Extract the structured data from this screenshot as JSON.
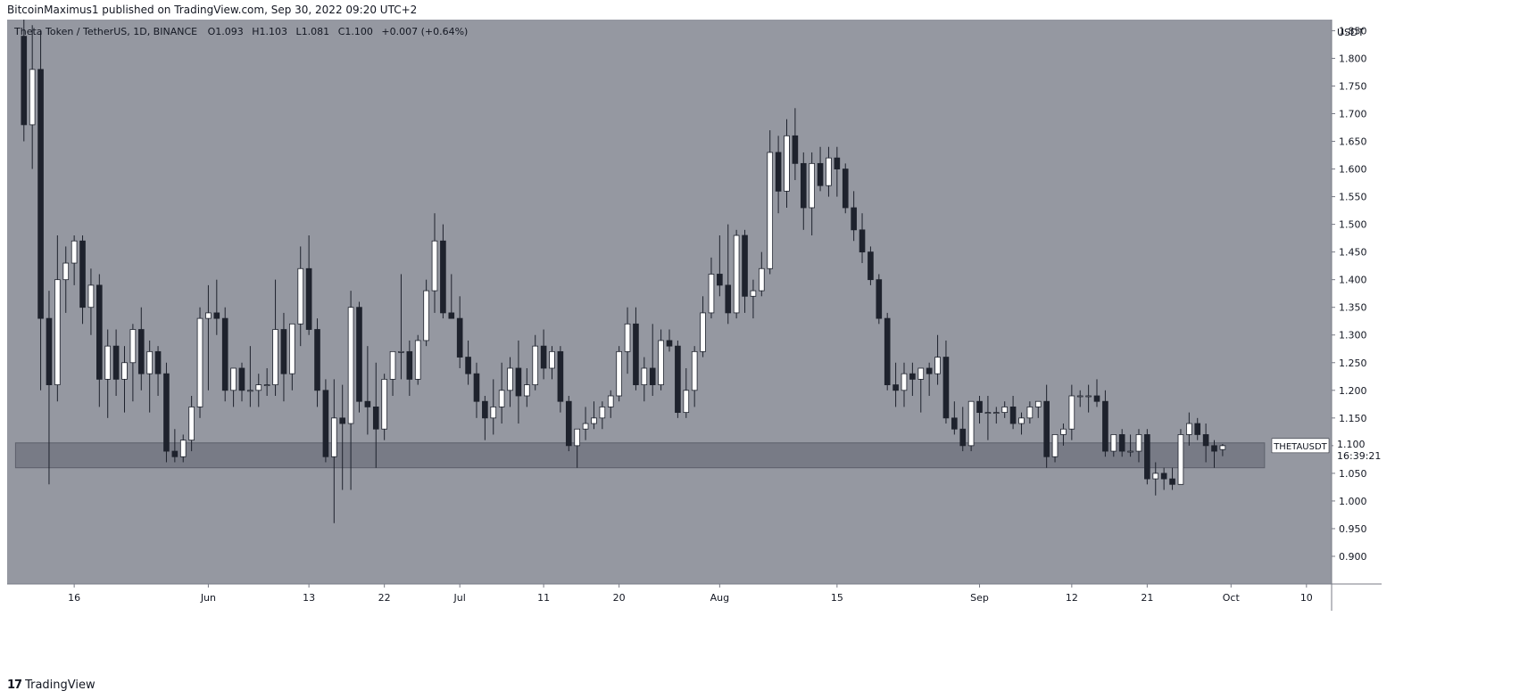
{
  "header": {
    "published_text": "BitcoinMaximus1 published on TradingView.com, Sep 30, 2022 09:20 UTC+2"
  },
  "legend": {
    "symbol": "Theta Token / TetherUS, 1D, BINANCE",
    "open_label": "O",
    "open": "1.093",
    "high_label": "H",
    "high": "1.103",
    "low_label": "L",
    "low": "1.081",
    "close_label": "C",
    "close": "1.100",
    "change": "+0.007 (+0.64%)"
  },
  "price_tag": {
    "ticker": "THETAUSDT",
    "price": "1.100",
    "countdown": "16:39:21"
  },
  "footer": {
    "logo_mark": "17",
    "logo_text": "TradingView"
  },
  "colors": {
    "chart_bg": "#9598a1",
    "up_candle": "#ffffff",
    "down_candle": "#1e222d",
    "wick": "#1e222d",
    "support_zone": "#787b86"
  },
  "chart_data": {
    "type": "candlestick",
    "ylabel": "USDT",
    "y_ticks": [
      "1.850",
      "1.800",
      "1.750",
      "1.700",
      "1.650",
      "1.600",
      "1.550",
      "1.500",
      "1.450",
      "1.400",
      "1.350",
      "1.300",
      "1.250",
      "1.200",
      "1.150",
      "1.100",
      "1.050",
      "1.000",
      "0.950",
      "0.900"
    ],
    "ylim": [
      0.85,
      1.87
    ],
    "x_ticks": [
      {
        "label": "16",
        "date": "2022-05-16"
      },
      {
        "label": "Jun",
        "date": "2022-06-01"
      },
      {
        "label": "13",
        "date": "2022-06-13"
      },
      {
        "label": "22",
        "date": "2022-06-22"
      },
      {
        "label": "Jul",
        "date": "2022-07-01"
      },
      {
        "label": "11",
        "date": "2022-07-11"
      },
      {
        "label": "20",
        "date": "2022-07-20"
      },
      {
        "label": "Aug",
        "date": "2022-08-01"
      },
      {
        "label": "15",
        "date": "2022-08-15"
      },
      {
        "label": "Sep",
        "date": "2022-09-01"
      },
      {
        "label": "12",
        "date": "2022-09-12"
      },
      {
        "label": "21",
        "date": "2022-09-21"
      },
      {
        "label": "Oct",
        "date": "2022-10-01"
      },
      {
        "label": "10",
        "date": "2022-10-10"
      }
    ],
    "xlim": [
      "2022-05-08",
      "2022-10-13"
    ],
    "support_zone": {
      "low": 1.06,
      "high": 1.105,
      "start": "2022-05-09",
      "end": "2022-10-05"
    },
    "grid": false,
    "candles": [
      {
        "date": "2022-05-10",
        "o": 1.84,
        "h": 1.87,
        "l": 1.65,
        "c": 1.68
      },
      {
        "date": "2022-05-11",
        "o": 1.68,
        "h": 1.86,
        "l": 1.6,
        "c": 1.78
      },
      {
        "date": "2022-05-12",
        "o": 1.78,
        "h": 1.85,
        "l": 1.2,
        "c": 1.33
      },
      {
        "date": "2022-05-13",
        "o": 1.33,
        "h": 1.38,
        "l": 1.03,
        "c": 1.21
      },
      {
        "date": "2022-05-14",
        "o": 1.21,
        "h": 1.48,
        "l": 1.18,
        "c": 1.4
      },
      {
        "date": "2022-05-15",
        "o": 1.4,
        "h": 1.46,
        "l": 1.34,
        "c": 1.43
      },
      {
        "date": "2022-05-16",
        "o": 1.43,
        "h": 1.48,
        "l": 1.39,
        "c": 1.47
      },
      {
        "date": "2022-05-17",
        "o": 1.47,
        "h": 1.48,
        "l": 1.32,
        "c": 1.35
      },
      {
        "date": "2022-05-18",
        "o": 1.35,
        "h": 1.42,
        "l": 1.3,
        "c": 1.39
      },
      {
        "date": "2022-05-19",
        "o": 1.39,
        "h": 1.41,
        "l": 1.17,
        "c": 1.22
      },
      {
        "date": "2022-05-20",
        "o": 1.22,
        "h": 1.31,
        "l": 1.15,
        "c": 1.28
      },
      {
        "date": "2022-05-21",
        "o": 1.28,
        "h": 1.31,
        "l": 1.19,
        "c": 1.22
      },
      {
        "date": "2022-05-22",
        "o": 1.22,
        "h": 1.28,
        "l": 1.16,
        "c": 1.25
      },
      {
        "date": "2022-05-23",
        "o": 1.25,
        "h": 1.32,
        "l": 1.18,
        "c": 1.31
      },
      {
        "date": "2022-05-24",
        "o": 1.31,
        "h": 1.35,
        "l": 1.2,
        "c": 1.23
      },
      {
        "date": "2022-05-25",
        "o": 1.23,
        "h": 1.29,
        "l": 1.16,
        "c": 1.27
      },
      {
        "date": "2022-05-26",
        "o": 1.27,
        "h": 1.28,
        "l": 1.19,
        "c": 1.23
      },
      {
        "date": "2022-05-27",
        "o": 1.23,
        "h": 1.25,
        "l": 1.07,
        "c": 1.09
      },
      {
        "date": "2022-05-28",
        "o": 1.09,
        "h": 1.13,
        "l": 1.07,
        "c": 1.08
      },
      {
        "date": "2022-05-29",
        "o": 1.08,
        "h": 1.12,
        "l": 1.07,
        "c": 1.11
      },
      {
        "date": "2022-05-30",
        "o": 1.11,
        "h": 1.19,
        "l": 1.09,
        "c": 1.17
      },
      {
        "date": "2022-05-31",
        "o": 1.17,
        "h": 1.35,
        "l": 1.15,
        "c": 1.33
      },
      {
        "date": "2022-06-01",
        "o": 1.33,
        "h": 1.39,
        "l": 1.2,
        "c": 1.34
      },
      {
        "date": "2022-06-02",
        "o": 1.34,
        "h": 1.4,
        "l": 1.3,
        "c": 1.33
      },
      {
        "date": "2022-06-03",
        "o": 1.33,
        "h": 1.35,
        "l": 1.18,
        "c": 1.2
      },
      {
        "date": "2022-06-04",
        "o": 1.2,
        "h": 1.24,
        "l": 1.17,
        "c": 1.24
      },
      {
        "date": "2022-06-05",
        "o": 1.24,
        "h": 1.25,
        "l": 1.18,
        "c": 1.2
      },
      {
        "date": "2022-06-06",
        "o": 1.2,
        "h": 1.28,
        "l": 1.17,
        "c": 1.2
      },
      {
        "date": "2022-06-07",
        "o": 1.2,
        "h": 1.23,
        "l": 1.17,
        "c": 1.21
      },
      {
        "date": "2022-06-08",
        "o": 1.21,
        "h": 1.24,
        "l": 1.19,
        "c": 1.21
      },
      {
        "date": "2022-06-09",
        "o": 1.21,
        "h": 1.4,
        "l": 1.19,
        "c": 1.31
      },
      {
        "date": "2022-06-10",
        "o": 1.31,
        "h": 1.34,
        "l": 1.18,
        "c": 1.23
      },
      {
        "date": "2022-06-11",
        "o": 1.23,
        "h": 1.32,
        "l": 1.2,
        "c": 1.32
      },
      {
        "date": "2022-06-12",
        "o": 1.32,
        "h": 1.46,
        "l": 1.28,
        "c": 1.42
      },
      {
        "date": "2022-06-13",
        "o": 1.42,
        "h": 1.48,
        "l": 1.3,
        "c": 1.31
      },
      {
        "date": "2022-06-14",
        "o": 1.31,
        "h": 1.33,
        "l": 1.17,
        "c": 1.2
      },
      {
        "date": "2022-06-15",
        "o": 1.2,
        "h": 1.22,
        "l": 1.07,
        "c": 1.08
      },
      {
        "date": "2022-06-16",
        "o": 1.08,
        "h": 1.22,
        "l": 0.96,
        "c": 1.15
      },
      {
        "date": "2022-06-17",
        "o": 1.15,
        "h": 1.21,
        "l": 1.02,
        "c": 1.14
      },
      {
        "date": "2022-06-18",
        "o": 1.14,
        "h": 1.38,
        "l": 1.02,
        "c": 1.35
      },
      {
        "date": "2022-06-19",
        "o": 1.35,
        "h": 1.36,
        "l": 1.16,
        "c": 1.18
      },
      {
        "date": "2022-06-20",
        "o": 1.18,
        "h": 1.28,
        "l": 1.12,
        "c": 1.17
      },
      {
        "date": "2022-06-21",
        "o": 1.17,
        "h": 1.25,
        "l": 1.06,
        "c": 1.13
      },
      {
        "date": "2022-06-22",
        "o": 1.13,
        "h": 1.23,
        "l": 1.11,
        "c": 1.22
      },
      {
        "date": "2022-06-23",
        "o": 1.22,
        "h": 1.27,
        "l": 1.19,
        "c": 1.27
      },
      {
        "date": "2022-06-24",
        "o": 1.27,
        "h": 1.41,
        "l": 1.22,
        "c": 1.27
      },
      {
        "date": "2022-06-25",
        "o": 1.27,
        "h": 1.29,
        "l": 1.19,
        "c": 1.22
      },
      {
        "date": "2022-06-26",
        "o": 1.22,
        "h": 1.3,
        "l": 1.21,
        "c": 1.29
      },
      {
        "date": "2022-06-27",
        "o": 1.29,
        "h": 1.4,
        "l": 1.28,
        "c": 1.38
      },
      {
        "date": "2022-06-28",
        "o": 1.38,
        "h": 1.52,
        "l": 1.34,
        "c": 1.47
      },
      {
        "date": "2022-06-29",
        "o": 1.47,
        "h": 1.5,
        "l": 1.33,
        "c": 1.34
      },
      {
        "date": "2022-06-30",
        "o": 1.34,
        "h": 1.41,
        "l": 1.33,
        "c": 1.33
      },
      {
        "date": "2022-07-01",
        "o": 1.33,
        "h": 1.37,
        "l": 1.24,
        "c": 1.26
      },
      {
        "date": "2022-07-02",
        "o": 1.26,
        "h": 1.29,
        "l": 1.21,
        "c": 1.23
      },
      {
        "date": "2022-07-03",
        "o": 1.23,
        "h": 1.25,
        "l": 1.15,
        "c": 1.18
      },
      {
        "date": "2022-07-04",
        "o": 1.18,
        "h": 1.19,
        "l": 1.11,
        "c": 1.15
      },
      {
        "date": "2022-07-05",
        "o": 1.15,
        "h": 1.22,
        "l": 1.12,
        "c": 1.17
      },
      {
        "date": "2022-07-06",
        "o": 1.17,
        "h": 1.25,
        "l": 1.14,
        "c": 1.2
      },
      {
        "date": "2022-07-07",
        "o": 1.2,
        "h": 1.26,
        "l": 1.17,
        "c": 1.24
      },
      {
        "date": "2022-07-08",
        "o": 1.24,
        "h": 1.29,
        "l": 1.14,
        "c": 1.19
      },
      {
        "date": "2022-07-09",
        "o": 1.19,
        "h": 1.24,
        "l": 1.17,
        "c": 1.21
      },
      {
        "date": "2022-07-10",
        "o": 1.21,
        "h": 1.3,
        "l": 1.2,
        "c": 1.28
      },
      {
        "date": "2022-07-11",
        "o": 1.28,
        "h": 1.31,
        "l": 1.22,
        "c": 1.24
      },
      {
        "date": "2022-07-12",
        "o": 1.24,
        "h": 1.28,
        "l": 1.22,
        "c": 1.27
      },
      {
        "date": "2022-07-13",
        "o": 1.27,
        "h": 1.28,
        "l": 1.16,
        "c": 1.18
      },
      {
        "date": "2022-07-14",
        "o": 1.18,
        "h": 1.19,
        "l": 1.09,
        "c": 1.1
      },
      {
        "date": "2022-07-15",
        "o": 1.1,
        "h": 1.13,
        "l": 1.06,
        "c": 1.13
      },
      {
        "date": "2022-07-16",
        "o": 1.13,
        "h": 1.17,
        "l": 1.11,
        "c": 1.14
      },
      {
        "date": "2022-07-17",
        "o": 1.14,
        "h": 1.18,
        "l": 1.13,
        "c": 1.15
      },
      {
        "date": "2022-07-18",
        "o": 1.15,
        "h": 1.18,
        "l": 1.13,
        "c": 1.17
      },
      {
        "date": "2022-07-19",
        "o": 1.17,
        "h": 1.2,
        "l": 1.15,
        "c": 1.19
      },
      {
        "date": "2022-07-20",
        "o": 1.19,
        "h": 1.28,
        "l": 1.18,
        "c": 1.27
      },
      {
        "date": "2022-07-21",
        "o": 1.27,
        "h": 1.35,
        "l": 1.23,
        "c": 1.32
      },
      {
        "date": "2022-07-22",
        "o": 1.32,
        "h": 1.35,
        "l": 1.2,
        "c": 1.21
      },
      {
        "date": "2022-07-23",
        "o": 1.21,
        "h": 1.26,
        "l": 1.18,
        "c": 1.24
      },
      {
        "date": "2022-07-24",
        "o": 1.24,
        "h": 1.32,
        "l": 1.19,
        "c": 1.21
      },
      {
        "date": "2022-07-25",
        "o": 1.21,
        "h": 1.31,
        "l": 1.2,
        "c": 1.29
      },
      {
        "date": "2022-07-26",
        "o": 1.29,
        "h": 1.31,
        "l": 1.27,
        "c": 1.28
      },
      {
        "date": "2022-07-27",
        "o": 1.28,
        "h": 1.29,
        "l": 1.15,
        "c": 1.16
      },
      {
        "date": "2022-07-28",
        "o": 1.16,
        "h": 1.24,
        "l": 1.15,
        "c": 1.2
      },
      {
        "date": "2022-07-29",
        "o": 1.2,
        "h": 1.28,
        "l": 1.17,
        "c": 1.27
      },
      {
        "date": "2022-07-30",
        "o": 1.27,
        "h": 1.37,
        "l": 1.26,
        "c": 1.34
      },
      {
        "date": "2022-07-31",
        "o": 1.34,
        "h": 1.44,
        "l": 1.33,
        "c": 1.41
      },
      {
        "date": "2022-08-01",
        "o": 1.41,
        "h": 1.48,
        "l": 1.37,
        "c": 1.39
      },
      {
        "date": "2022-08-02",
        "o": 1.39,
        "h": 1.5,
        "l": 1.32,
        "c": 1.34
      },
      {
        "date": "2022-08-03",
        "o": 1.34,
        "h": 1.49,
        "l": 1.33,
        "c": 1.48
      },
      {
        "date": "2022-08-04",
        "o": 1.48,
        "h": 1.49,
        "l": 1.34,
        "c": 1.37
      },
      {
        "date": "2022-08-05",
        "o": 1.37,
        "h": 1.4,
        "l": 1.33,
        "c": 1.38
      },
      {
        "date": "2022-08-06",
        "o": 1.38,
        "h": 1.45,
        "l": 1.37,
        "c": 1.42
      },
      {
        "date": "2022-08-07",
        "o": 1.42,
        "h": 1.67,
        "l": 1.41,
        "c": 1.63
      },
      {
        "date": "2022-08-08",
        "o": 1.63,
        "h": 1.66,
        "l": 1.52,
        "c": 1.56
      },
      {
        "date": "2022-08-09",
        "o": 1.56,
        "h": 1.69,
        "l": 1.53,
        "c": 1.66
      },
      {
        "date": "2022-08-10",
        "o": 1.66,
        "h": 1.71,
        "l": 1.58,
        "c": 1.61
      },
      {
        "date": "2022-08-11",
        "o": 1.61,
        "h": 1.63,
        "l": 1.49,
        "c": 1.53
      },
      {
        "date": "2022-08-12",
        "o": 1.53,
        "h": 1.63,
        "l": 1.48,
        "c": 1.61
      },
      {
        "date": "2022-08-13",
        "o": 1.61,
        "h": 1.64,
        "l": 1.56,
        "c": 1.57
      },
      {
        "date": "2022-08-14",
        "o": 1.57,
        "h": 1.64,
        "l": 1.55,
        "c": 1.62
      },
      {
        "date": "2022-08-15",
        "o": 1.62,
        "h": 1.64,
        "l": 1.55,
        "c": 1.6
      },
      {
        "date": "2022-08-16",
        "o": 1.6,
        "h": 1.61,
        "l": 1.52,
        "c": 1.53
      },
      {
        "date": "2022-08-17",
        "o": 1.53,
        "h": 1.56,
        "l": 1.47,
        "c": 1.49
      },
      {
        "date": "2022-08-18",
        "o": 1.49,
        "h": 1.52,
        "l": 1.43,
        "c": 1.45
      },
      {
        "date": "2022-08-19",
        "o": 1.45,
        "h": 1.46,
        "l": 1.39,
        "c": 1.4
      },
      {
        "date": "2022-08-20",
        "o": 1.4,
        "h": 1.41,
        "l": 1.32,
        "c": 1.33
      },
      {
        "date": "2022-08-21",
        "o": 1.33,
        "h": 1.34,
        "l": 1.2,
        "c": 1.21
      },
      {
        "date": "2022-08-22",
        "o": 1.21,
        "h": 1.25,
        "l": 1.17,
        "c": 1.2
      },
      {
        "date": "2022-08-23",
        "o": 1.2,
        "h": 1.25,
        "l": 1.17,
        "c": 1.23
      },
      {
        "date": "2022-08-24",
        "o": 1.23,
        "h": 1.25,
        "l": 1.19,
        "c": 1.22
      },
      {
        "date": "2022-08-25",
        "o": 1.22,
        "h": 1.24,
        "l": 1.16,
        "c": 1.24
      },
      {
        "date": "2022-08-26",
        "o": 1.24,
        "h": 1.25,
        "l": 1.19,
        "c": 1.23
      },
      {
        "date": "2022-08-27",
        "o": 1.23,
        "h": 1.3,
        "l": 1.21,
        "c": 1.26
      },
      {
        "date": "2022-08-28",
        "o": 1.26,
        "h": 1.29,
        "l": 1.14,
        "c": 1.15
      },
      {
        "date": "2022-08-29",
        "o": 1.15,
        "h": 1.18,
        "l": 1.12,
        "c": 1.13
      },
      {
        "date": "2022-08-30",
        "o": 1.13,
        "h": 1.17,
        "l": 1.09,
        "c": 1.1
      },
      {
        "date": "2022-08-31",
        "o": 1.1,
        "h": 1.18,
        "l": 1.09,
        "c": 1.18
      },
      {
        "date": "2022-09-01",
        "o": 1.18,
        "h": 1.19,
        "l": 1.14,
        "c": 1.16
      },
      {
        "date": "2022-09-02",
        "o": 1.16,
        "h": 1.19,
        "l": 1.11,
        "c": 1.16
      },
      {
        "date": "2022-09-03",
        "o": 1.16,
        "h": 1.17,
        "l": 1.14,
        "c": 1.16
      },
      {
        "date": "2022-09-04",
        "o": 1.16,
        "h": 1.18,
        "l": 1.15,
        "c": 1.17
      },
      {
        "date": "2022-09-05",
        "o": 1.17,
        "h": 1.19,
        "l": 1.13,
        "c": 1.14
      },
      {
        "date": "2022-09-06",
        "o": 1.14,
        "h": 1.16,
        "l": 1.12,
        "c": 1.15
      },
      {
        "date": "2022-09-07",
        "o": 1.15,
        "h": 1.18,
        "l": 1.14,
        "c": 1.17
      },
      {
        "date": "2022-09-08",
        "o": 1.17,
        "h": 1.18,
        "l": 1.15,
        "c": 1.18
      },
      {
        "date": "2022-09-09",
        "o": 1.18,
        "h": 1.21,
        "l": 1.06,
        "c": 1.08
      },
      {
        "date": "2022-09-10",
        "o": 1.08,
        "h": 1.12,
        "l": 1.07,
        "c": 1.12
      },
      {
        "date": "2022-09-11",
        "o": 1.12,
        "h": 1.14,
        "l": 1.1,
        "c": 1.13
      },
      {
        "date": "2022-09-12",
        "o": 1.13,
        "h": 1.21,
        "l": 1.11,
        "c": 1.19
      },
      {
        "date": "2022-09-13",
        "o": 1.19,
        "h": 1.2,
        "l": 1.17,
        "c": 1.19
      },
      {
        "date": "2022-09-14",
        "o": 1.19,
        "h": 1.21,
        "l": 1.16,
        "c": 1.19
      },
      {
        "date": "2022-09-15",
        "o": 1.19,
        "h": 1.22,
        "l": 1.17,
        "c": 1.18
      },
      {
        "date": "2022-09-16",
        "o": 1.18,
        "h": 1.2,
        "l": 1.08,
        "c": 1.09
      },
      {
        "date": "2022-09-17",
        "o": 1.09,
        "h": 1.12,
        "l": 1.08,
        "c": 1.12
      },
      {
        "date": "2022-09-18",
        "o": 1.12,
        "h": 1.13,
        "l": 1.08,
        "c": 1.09
      },
      {
        "date": "2022-09-19",
        "o": 1.09,
        "h": 1.12,
        "l": 1.08,
        "c": 1.09
      },
      {
        "date": "2022-09-20",
        "o": 1.09,
        "h": 1.13,
        "l": 1.07,
        "c": 1.12
      },
      {
        "date": "2022-09-21",
        "o": 1.12,
        "h": 1.13,
        "l": 1.03,
        "c": 1.04
      },
      {
        "date": "2022-09-22",
        "o": 1.04,
        "h": 1.07,
        "l": 1.01,
        "c": 1.05
      },
      {
        "date": "2022-09-23",
        "o": 1.05,
        "h": 1.06,
        "l": 1.02,
        "c": 1.04
      },
      {
        "date": "2022-09-24",
        "o": 1.04,
        "h": 1.06,
        "l": 1.02,
        "c": 1.03
      },
      {
        "date": "2022-09-25",
        "o": 1.03,
        "h": 1.13,
        "l": 1.03,
        "c": 1.12
      },
      {
        "date": "2022-09-26",
        "o": 1.12,
        "h": 1.16,
        "l": 1.1,
        "c": 1.14
      },
      {
        "date": "2022-09-27",
        "o": 1.14,
        "h": 1.15,
        "l": 1.11,
        "c": 1.12
      },
      {
        "date": "2022-09-28",
        "o": 1.12,
        "h": 1.14,
        "l": 1.07,
        "c": 1.1
      },
      {
        "date": "2022-09-29",
        "o": 1.1,
        "h": 1.11,
        "l": 1.06,
        "c": 1.09
      },
      {
        "date": "2022-09-30",
        "o": 1.093,
        "h": 1.103,
        "l": 1.081,
        "c": 1.1
      }
    ]
  }
}
